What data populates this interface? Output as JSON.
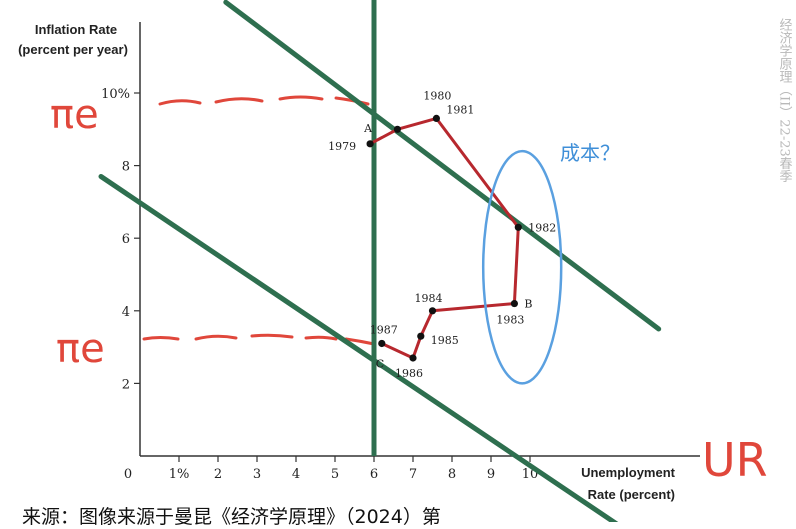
{
  "chart_data": {
    "type": "line",
    "ylabel_lines": [
      "Inflation Rate",
      "(percent per year)"
    ],
    "xlabel_lines": [
      "Unemployment",
      "Rate (percent)"
    ],
    "x_ticks": [
      {
        "v": 0,
        "label": "0"
      },
      {
        "v": 1,
        "label": "1%"
      },
      {
        "v": 2,
        "label": "2"
      },
      {
        "v": 3,
        "label": "3"
      },
      {
        "v": 4,
        "label": "4"
      },
      {
        "v": 5,
        "label": "5"
      },
      {
        "v": 6,
        "label": "6"
      },
      {
        "v": 7,
        "label": "7"
      },
      {
        "v": 8,
        "label": "8"
      },
      {
        "v": 9,
        "label": "9"
      },
      {
        "v": 10,
        "label": "10"
      }
    ],
    "y_ticks": [
      {
        "v": 2,
        "label": "2"
      },
      {
        "v": 4,
        "label": "4"
      },
      {
        "v": 6,
        "label": "6"
      },
      {
        "v": 8,
        "label": "8"
      },
      {
        "v": 10,
        "label": "10%"
      }
    ],
    "xlim": [
      0,
      13.6
    ],
    "ylim": [
      0,
      12
    ],
    "series": [
      {
        "points": [
          {
            "x": 5.9,
            "y": 8.6,
            "year": "1979",
            "letter": "A"
          },
          {
            "x": 6.6,
            "y": 9.0,
            "year": "1980"
          },
          {
            "x": 7.6,
            "y": 9.3,
            "year": "1981"
          },
          {
            "x": 9.7,
            "y": 6.3,
            "year": "1982"
          },
          {
            "x": 9.6,
            "y": 4.2,
            "year": "1983",
            "letter": "B"
          },
          {
            "x": 7.5,
            "y": 4.0,
            "year": "1984"
          },
          {
            "x": 7.2,
            "y": 3.3,
            "year": "1985"
          },
          {
            "x": 7.0,
            "y": 2.7,
            "year": "1986"
          },
          {
            "x": 6.2,
            "y": 3.1,
            "year": "1987",
            "letter": "C"
          }
        ],
        "color": "#b7282e"
      }
    ],
    "overlay_lines": [
      {
        "kind": "vertical",
        "x": 6.0,
        "color": "#2e6f4f"
      },
      {
        "kind": "sloped",
        "from": [
          2.2,
          12.5
        ],
        "to": [
          13.3,
          3.5
        ],
        "color": "#2e6f4f"
      },
      {
        "kind": "sloped",
        "from": [
          -1.0,
          7.7
        ],
        "to": [
          12.4,
          -2.0
        ],
        "color": "#2e6f4f"
      }
    ],
    "ellipse": {
      "cx": 9.8,
      "cy": 5.2,
      "rx": 1.0,
      "ry": 3.2,
      "color": "#5aa0e0"
    },
    "grid": false
  },
  "annotations": {
    "pi_e_upper": "πe",
    "pi_e_lower": "πe",
    "ur": "UR",
    "cost_note": "成本？",
    "watermark": "经济学原理（II）22-23春季"
  },
  "caption": "来源：图像来源于曼昆《经济学原理》（2024）第"
}
